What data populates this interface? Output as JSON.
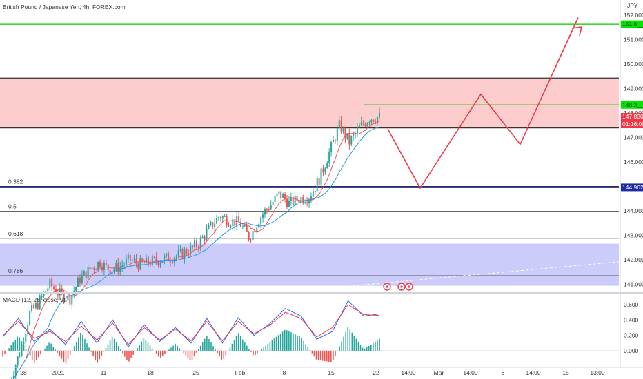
{
  "chart_data": [
    {
      "type": "candlestick",
      "title": "British Pound / Japanese Yen, 4h, FOREX.com",
      "currency_label": "JPY",
      "price_axis_ticks": [
        "152.000",
        "151.000",
        "150.000",
        "149.000",
        "148.000",
        "147.000",
        "146.000",
        "145.000",
        "144.000",
        "143.000",
        "142.000",
        "141.000"
      ],
      "time_axis_ticks": [
        "28",
        "2021",
        "11",
        "18",
        "25",
        "Feb",
        "8",
        "15",
        "22",
        "14:00",
        "Mar",
        "14:00",
        "8",
        "14:00",
        "15",
        "13:00"
      ],
      "ylim": [
        140.85,
        152.3
      ],
      "current_price": {
        "label": "147.830",
        "value": 147.83,
        "countdown": "01:16:00",
        "color": "#f23645"
      },
      "level_labels": {
        "green_top": "151.6__",
        "green_mid": "148.3__",
        "blue": "144.962"
      },
      "fibonacci": [
        {
          "label": "0.382",
          "value": 145.0
        },
        {
          "label": "0.5",
          "value": 143.98
        },
        {
          "label": "0.618",
          "value": 142.88
        },
        {
          "label": "0.786",
          "value": 141.35
        }
      ],
      "horizontal_levels": [
        {
          "value": 151.63,
          "color": "#00c800"
        },
        {
          "value": 149.43,
          "color": "#333333"
        },
        {
          "value": 148.33,
          "color": "#00c800"
        },
        {
          "value": 147.39,
          "color": "#333333"
        },
        {
          "value": 144.96,
          "color": "#1e2aa6"
        }
      ],
      "zones": [
        {
          "from": 147.39,
          "to": 149.43,
          "color": "#fdcccc"
        },
        {
          "from": 140.94,
          "to": 142.66,
          "color": "#ccccfa"
        }
      ],
      "close_path": [
        137.0,
        138.2,
        139.8,
        140.3,
        141.0,
        140.6,
        140.4,
        141.2,
        141.6,
        141.9,
        141.6,
        141.7,
        142.0,
        141.8,
        141.9,
        142.0,
        142.1,
        142.2,
        142.4,
        142.7,
        143.3,
        143.8,
        143.6,
        143.5,
        142.9,
        143.7,
        144.2,
        144.7,
        144.3,
        144.5,
        144.6,
        145.3,
        146.4,
        147.5,
        146.8,
        147.4,
        147.8,
        147.83
      ],
      "projection": [
        {
          "t": "22",
          "value": 147.35
        },
        {
          "t": "14:00",
          "value": 144.93
        },
        {
          "t": "14:00",
          "value": 148.77
        },
        {
          "t": "8",
          "value": 146.72
        },
        {
          "t": "15",
          "value": 151.9
        }
      ]
    },
    {
      "type": "line",
      "title": "MACD (12, 26, close, 9)",
      "ylim": [
        -0.17,
        0.72
      ],
      "y_ticks": [
        "0.600",
        "0.400",
        "0.200",
        "0.000"
      ],
      "series": [
        {
          "name": "MACD",
          "color": "#2962ff",
          "values": [
            0.18,
            0.42,
            0.12,
            0.28,
            0.08,
            0.38,
            0.1,
            0.4,
            0.05,
            0.34,
            0.12,
            0.3,
            0.1,
            0.42,
            0.1,
            0.43,
            0.2,
            0.35,
            0.55,
            0.45,
            0.15,
            0.25,
            0.65,
            0.45,
            0.48
          ]
        },
        {
          "name": "Signal",
          "color": "#f23645",
          "values": [
            0.2,
            0.38,
            0.16,
            0.25,
            0.12,
            0.32,
            0.14,
            0.36,
            0.08,
            0.3,
            0.14,
            0.28,
            0.13,
            0.38,
            0.13,
            0.38,
            0.22,
            0.33,
            0.5,
            0.42,
            0.18,
            0.3,
            0.6,
            0.47,
            0.46
          ]
        }
      ]
    }
  ],
  "toolbar": {
    "event_icon_earnings": "E",
    "event_icon_dividend": "D"
  }
}
